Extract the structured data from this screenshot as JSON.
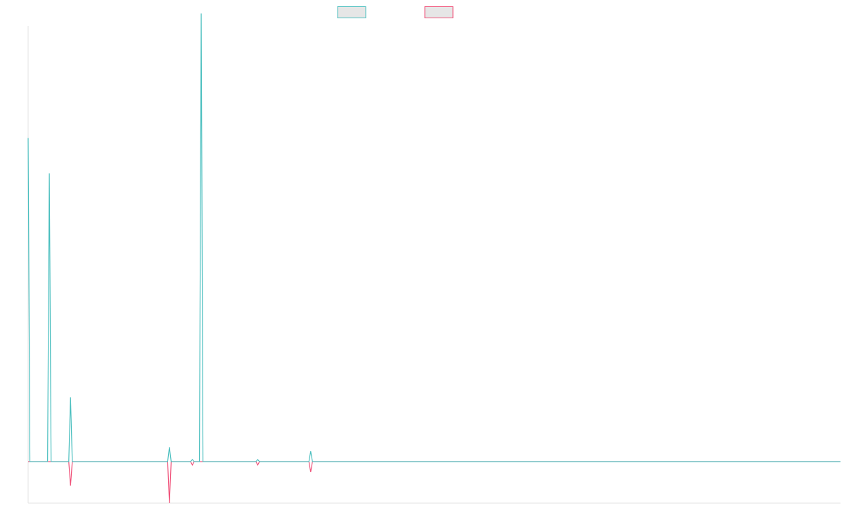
{
  "chart_data": {
    "type": "line",
    "title": "",
    "xlabel": "",
    "ylabel": "",
    "grid": false,
    "legend_placement": "top-center",
    "xlim": [
      0,
      460
    ],
    "ylim": [
      -1.0,
      10.5
    ],
    "series": [
      {
        "color": "#4bbfbf",
        "points": [
          [
            0,
            7.8
          ],
          [
            1,
            0
          ],
          [
            11,
            0
          ],
          [
            12,
            6.95
          ],
          [
            13,
            0
          ],
          [
            23,
            0
          ],
          [
            24,
            1.55
          ],
          [
            25,
            0
          ],
          [
            79,
            0
          ],
          [
            80,
            0.35
          ],
          [
            81,
            0
          ],
          [
            92,
            0
          ],
          [
            93,
            0.05
          ],
          [
            94,
            0
          ],
          [
            97,
            0
          ],
          [
            98,
            10.8
          ],
          [
            99,
            0
          ],
          [
            129,
            0
          ],
          [
            130,
            0.05
          ],
          [
            131,
            0
          ],
          [
            159,
            0
          ],
          [
            160,
            0.25
          ],
          [
            161,
            0
          ],
          [
            460,
            0
          ]
        ]
      },
      {
        "color": "#f0527a",
        "points": [
          [
            0,
            0
          ],
          [
            23,
            0
          ],
          [
            24,
            -0.58
          ],
          [
            25,
            0
          ],
          [
            79,
            0
          ],
          [
            80,
            -1.0
          ],
          [
            81,
            0
          ],
          [
            92,
            0
          ],
          [
            93,
            -0.08
          ],
          [
            94,
            0
          ],
          [
            129,
            0
          ],
          [
            130,
            -0.08
          ],
          [
            131,
            0
          ],
          [
            159,
            0
          ],
          [
            160,
            -0.25
          ],
          [
            161,
            0
          ],
          [
            460,
            0
          ]
        ]
      }
    ]
  }
}
